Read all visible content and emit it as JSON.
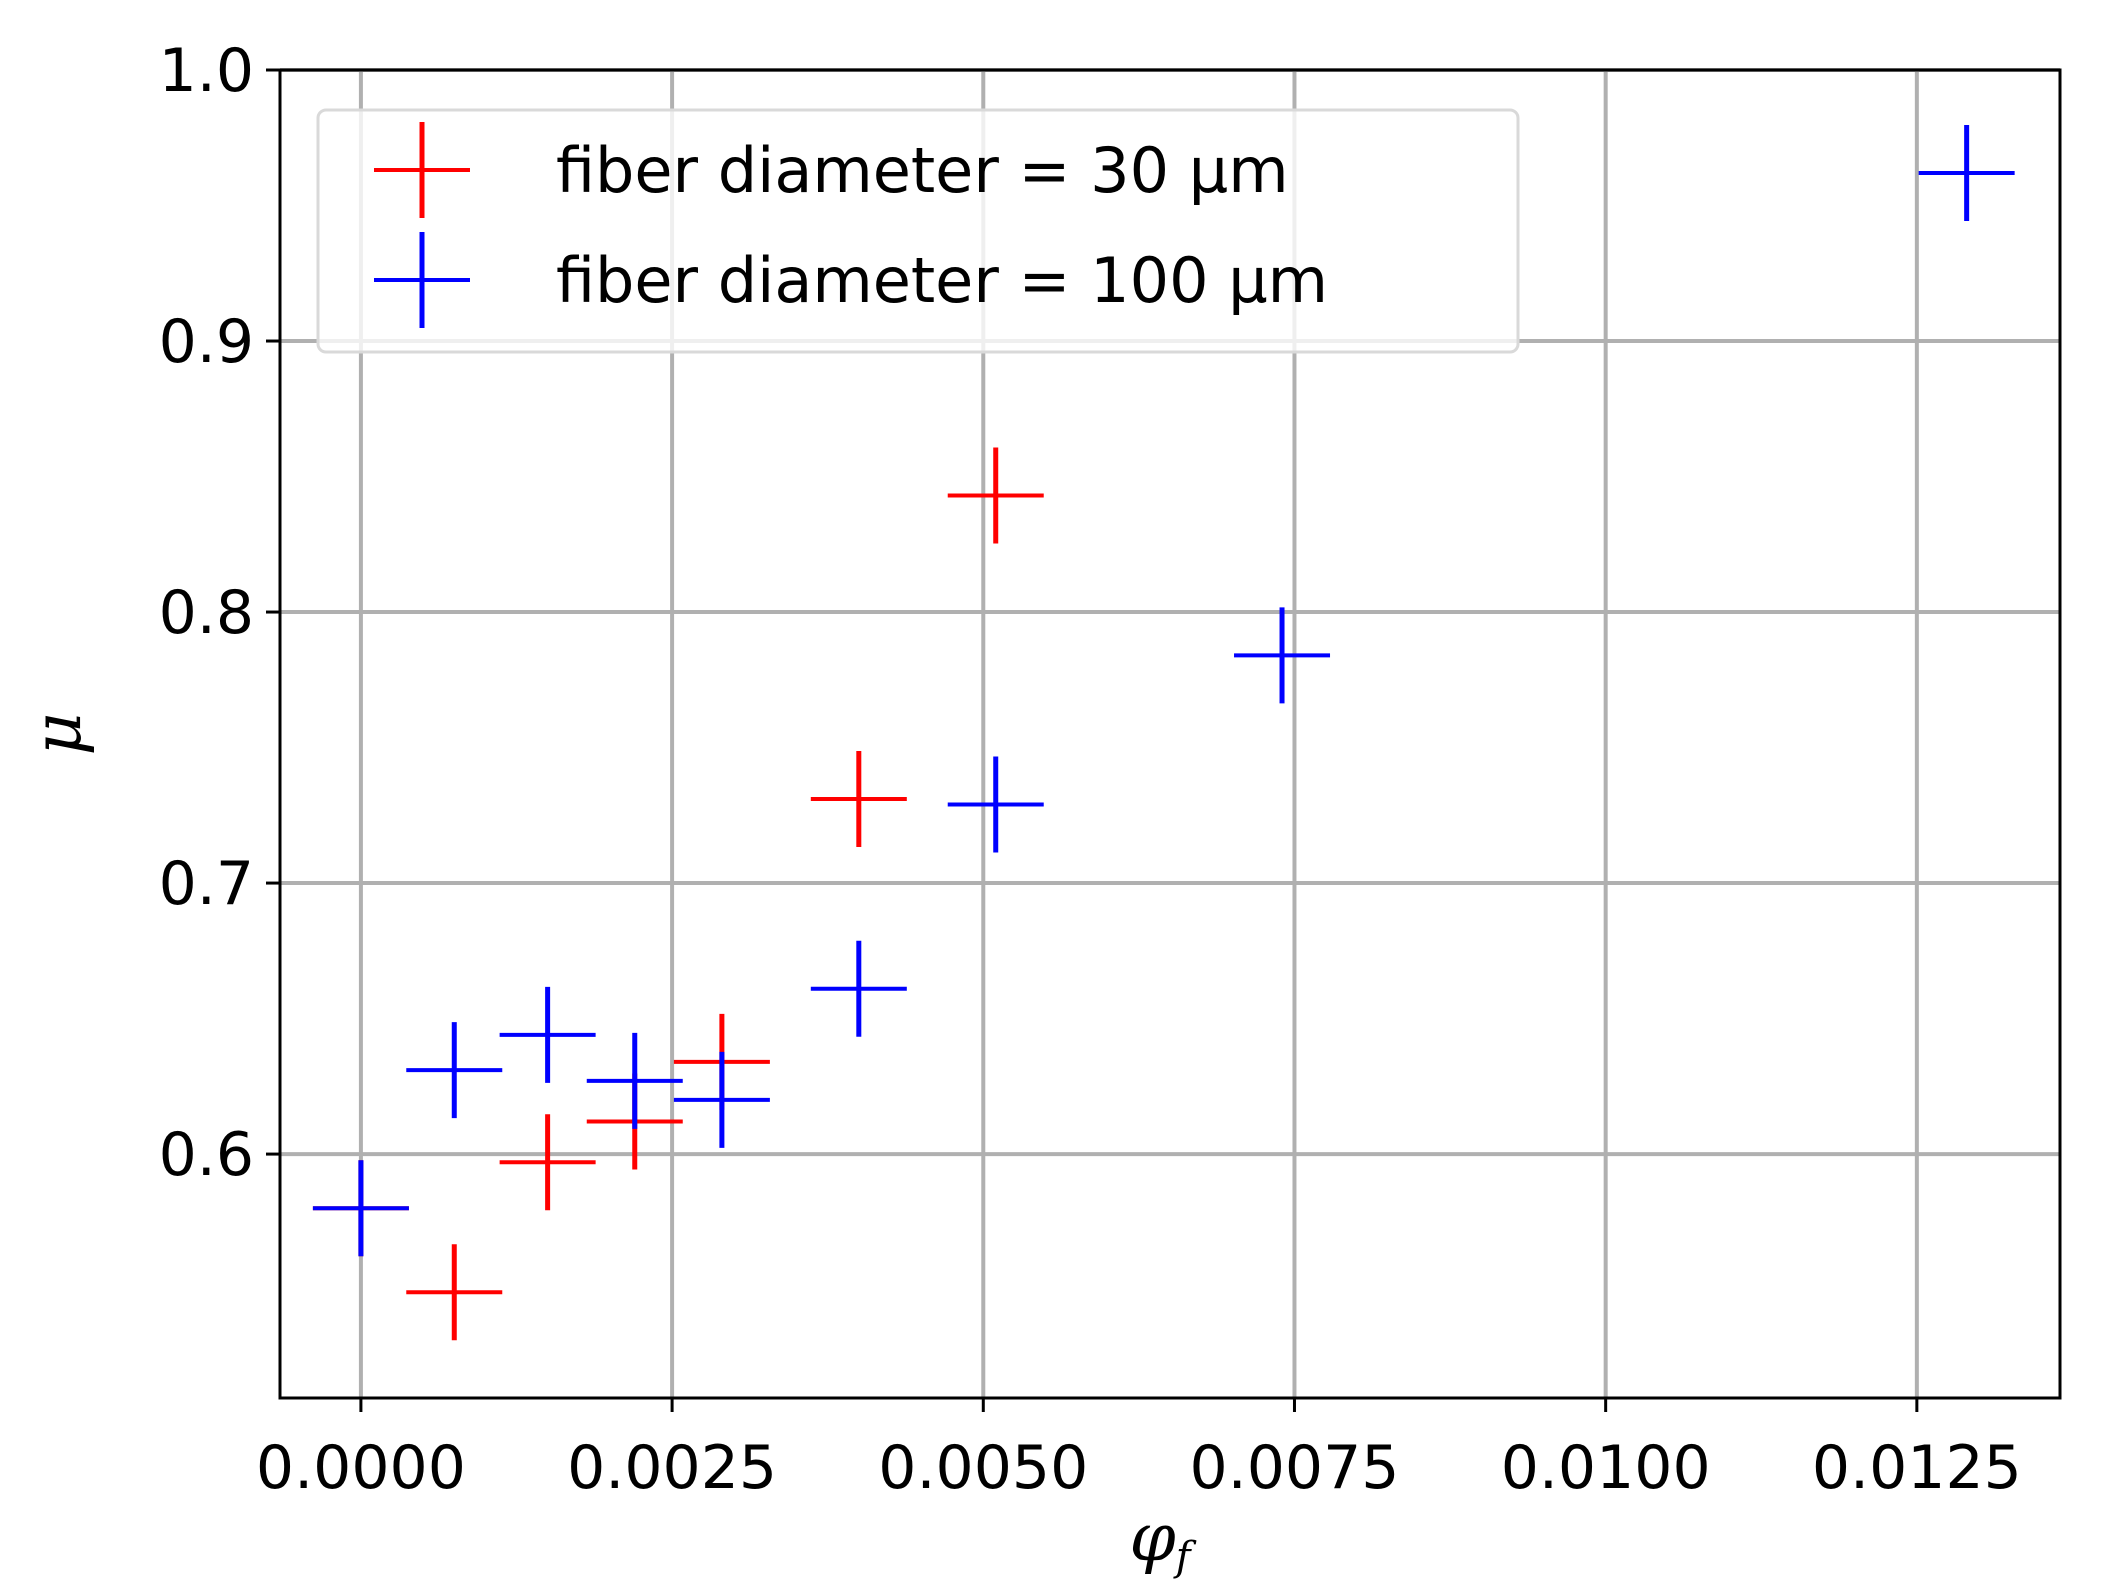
{
  "chart_data": {
    "type": "scatter",
    "xlabel": "φ",
    "xlabel_sub": "f",
    "ylabel": "μ",
    "xlim": [
      -0.00065,
      0.01365
    ],
    "ylim": [
      0.51,
      1.0
    ],
    "xticks": [
      "0.0000",
      "0.0025",
      "0.0050",
      "0.0075",
      "0.0100",
      "0.0125"
    ],
    "xtick_values": [
      0.0,
      0.0025,
      0.005,
      0.0075,
      0.01,
      0.0125
    ],
    "yticks": [
      "0.6",
      "0.7",
      "0.8",
      "0.9",
      "1.0"
    ],
    "ytick_values": [
      0.6,
      0.7,
      0.8,
      0.9,
      1.0
    ],
    "grid": true,
    "legend_position": "upper-left",
    "marker": "+",
    "series": [
      {
        "name": "fiber diameter = 30 μm",
        "color": "#ff0000",
        "points": [
          [
            0.0,
            0.58
          ],
          [
            0.00075,
            0.549
          ],
          [
            0.0015,
            0.597
          ],
          [
            0.0022,
            0.612
          ],
          [
            0.0029,
            0.634
          ],
          [
            0.004,
            0.731
          ],
          [
            0.0051,
            0.843
          ]
        ]
      },
      {
        "name": "fiber diameter = 100 μm",
        "color": "#0000ff",
        "points": [
          [
            0.0,
            0.58
          ],
          [
            0.00075,
            0.631
          ],
          [
            0.0015,
            0.644
          ],
          [
            0.0022,
            0.627
          ],
          [
            0.0029,
            0.62
          ],
          [
            0.004,
            0.661
          ],
          [
            0.0051,
            0.729
          ],
          [
            0.0074,
            0.784
          ],
          [
            0.0129,
            0.962
          ]
        ]
      }
    ]
  }
}
